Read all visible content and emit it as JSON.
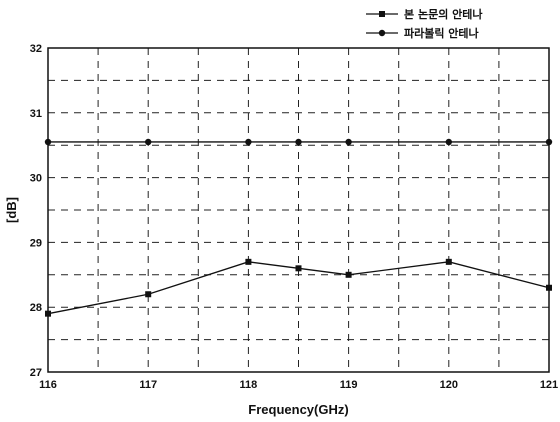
{
  "chart_data": {
    "type": "line",
    "xlabel": "Frequency(GHz)",
    "ylabel": "[dB]",
    "xlim": [
      116,
      121
    ],
    "ylim": [
      27,
      32
    ],
    "x_ticks": [
      "116",
      "117",
      "118",
      "119",
      "120",
      "121"
    ],
    "y_ticks": [
      "27",
      "28",
      "29",
      "30",
      "31",
      "32"
    ],
    "grid": true,
    "legend_position": "top-right",
    "series": [
      {
        "name": "본 논문의 안테나",
        "marker": "square",
        "color": "#111111",
        "x": [
          116,
          117,
          118,
          118.5,
          119,
          120,
          121
        ],
        "values": [
          27.9,
          28.2,
          28.7,
          28.6,
          28.5,
          28.7,
          28.3
        ]
      },
      {
        "name": "파라볼릭 안테나",
        "marker": "circle",
        "color": "#111111",
        "x": [
          116,
          117,
          118,
          118.5,
          119,
          120,
          121
        ],
        "values": [
          30.55,
          30.55,
          30.55,
          30.55,
          30.55,
          30.55,
          30.55
        ]
      }
    ]
  }
}
